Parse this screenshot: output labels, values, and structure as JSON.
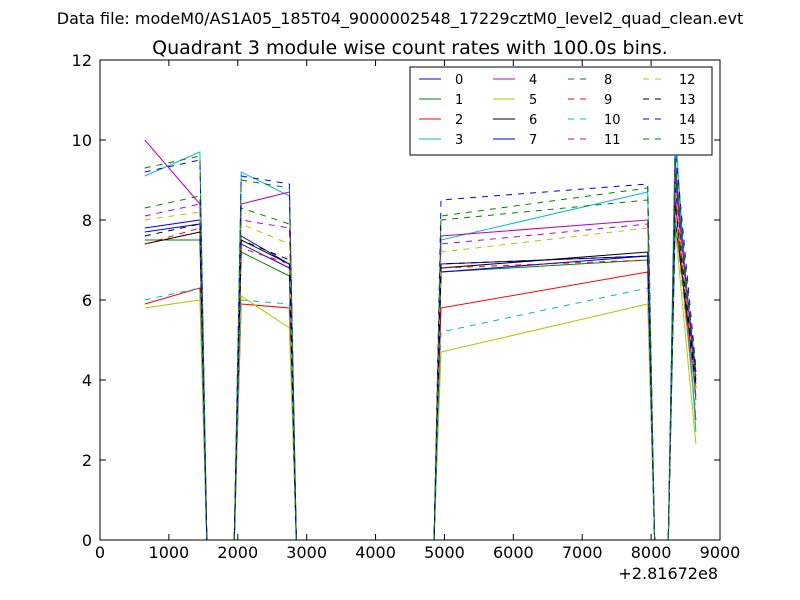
{
  "suptitle": "Data file: modeM0/AS1A05_185T04_9000002548_17229cztM0_level2_quad_clean.evt",
  "chart_data": {
    "type": "line",
    "title": "Quadrant 3 module wise count rates with 100.0s bins.",
    "xlabel": "",
    "ylabel": "",
    "x_offset_label": "+2.81672e8",
    "xlim": [
      0,
      9000
    ],
    "ylim": [
      0,
      12
    ],
    "xticks": [
      0,
      1000,
      2000,
      3000,
      4000,
      5000,
      6000,
      7000,
      8000,
      9000
    ],
    "yticks": [
      0,
      2,
      4,
      6,
      8,
      10,
      12
    ],
    "grid": false,
    "legend": {
      "placement": "top-right",
      "columns": 4
    },
    "x_nodes": [
      650,
      1450,
      1550,
      1950,
      2050,
      2750,
      2850,
      4850,
      4950,
      7950,
      8050,
      8250,
      8350,
      8650
    ],
    "series": [
      {
        "name": "0",
        "color": "#0000ff",
        "dash": "solid",
        "values": [
          7.7,
          7.9,
          0,
          0,
          7.4,
          6.8,
          0,
          0,
          6.9,
          7.1,
          0,
          0,
          9.2,
          4.0
        ]
      },
      {
        "name": "1",
        "color": "#008000",
        "dash": "solid",
        "values": [
          7.5,
          7.5,
          0,
          0,
          7.2,
          6.6,
          0,
          0,
          6.7,
          7.0,
          0,
          0,
          9.0,
          3.5
        ]
      },
      {
        "name": "2",
        "color": "#ff0000",
        "dash": "solid",
        "values": [
          5.9,
          6.3,
          0,
          0,
          5.9,
          5.8,
          0,
          0,
          5.8,
          6.7,
          0,
          0,
          8.5,
          3.0
        ]
      },
      {
        "name": "3",
        "color": "#00bfbf",
        "dash": "solid",
        "values": [
          9.1,
          9.7,
          0,
          0,
          9.2,
          8.6,
          0,
          0,
          7.5,
          8.7,
          0,
          0,
          10.3,
          2.7
        ]
      },
      {
        "name": "4",
        "color": "#bf00bf",
        "dash": "solid",
        "values": [
          10.0,
          8.4,
          0,
          0,
          8.4,
          8.7,
          0,
          0,
          7.6,
          8.0,
          0,
          0,
          9.5,
          3.6
        ]
      },
      {
        "name": "5",
        "color": "#bfbf00",
        "dash": "solid",
        "values": [
          5.8,
          6.0,
          0,
          0,
          6.1,
          5.3,
          0,
          0,
          4.7,
          5.9,
          0,
          0,
          7.8,
          2.4
        ]
      },
      {
        "name": "6",
        "color": "#000000",
        "dash": "solid",
        "values": [
          7.4,
          7.7,
          0,
          0,
          7.5,
          6.9,
          0,
          0,
          6.8,
          7.2,
          0,
          0,
          8.0,
          3.8
        ]
      },
      {
        "name": "7",
        "color": "#0000ff",
        "dash": "solid",
        "values": [
          7.8,
          8.0,
          0,
          0,
          7.6,
          6.9,
          0,
          0,
          6.7,
          7.1,
          0,
          0,
          8.8,
          4.2
        ]
      },
      {
        "name": "8",
        "color": "#008000",
        "dash": "dashed",
        "values": [
          8.3,
          8.6,
          0,
          0,
          8.3,
          7.9,
          0,
          0,
          8.0,
          8.5,
          0,
          0,
          9.4,
          3.8
        ]
      },
      {
        "name": "9",
        "color": "#ff0000",
        "dash": "dashed",
        "values": [
          7.4,
          7.8,
          0,
          0,
          7.3,
          6.9,
          0,
          0,
          6.8,
          7.0,
          0,
          0,
          8.6,
          3.6
        ]
      },
      {
        "name": "10",
        "color": "#00bfbf",
        "dash": "dashed",
        "values": [
          6.0,
          6.3,
          0,
          0,
          6.0,
          5.9,
          0,
          0,
          5.2,
          6.3,
          0,
          0,
          8.0,
          3.2
        ]
      },
      {
        "name": "11",
        "color": "#bf00bf",
        "dash": "dashed",
        "values": [
          8.1,
          8.4,
          0,
          0,
          8.0,
          7.8,
          0,
          0,
          7.4,
          7.9,
          0,
          0,
          9.1,
          3.9
        ]
      },
      {
        "name": "12",
        "color": "#bfbf00",
        "dash": "dashed",
        "values": [
          8.0,
          8.2,
          0,
          0,
          7.9,
          7.4,
          0,
          0,
          7.2,
          7.8,
          0,
          0,
          8.9,
          3.7
        ]
      },
      {
        "name": "13",
        "color": "#000000",
        "dash": "dashed",
        "values": [
          7.6,
          7.9,
          0,
          0,
          7.5,
          7.0,
          0,
          0,
          6.9,
          7.1,
          0,
          0,
          8.4,
          3.9
        ]
      },
      {
        "name": "14",
        "color": "#0000ff",
        "dash": "dashed",
        "values": [
          9.2,
          9.5,
          0,
          0,
          9.1,
          8.9,
          0,
          0,
          8.5,
          8.9,
          0,
          0,
          9.8,
          4.3
        ]
      },
      {
        "name": "15",
        "color": "#008000",
        "dash": "dashed",
        "values": [
          9.3,
          9.6,
          0,
          0,
          9.0,
          8.8,
          0,
          0,
          8.1,
          8.8,
          0,
          0,
          9.6,
          4.1
        ]
      }
    ]
  }
}
